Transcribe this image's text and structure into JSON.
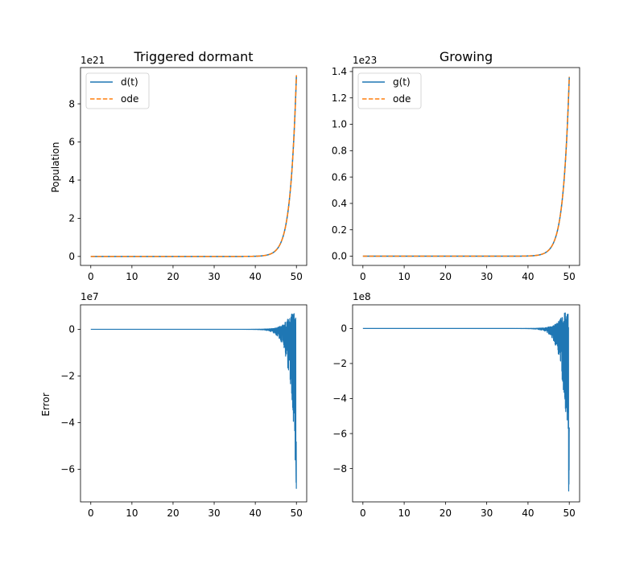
{
  "chart_data": [
    {
      "type": "line",
      "title": "Triggered dormant",
      "xlabel": "",
      "ylabel": "Population",
      "xlim": [
        -2.5,
        52.5
      ],
      "ylim": [
        -4.7e+20,
        9.9e+21
      ],
      "xticks": [
        0,
        10,
        20,
        30,
        40,
        50
      ],
      "xtick_labels": [
        "0",
        "10",
        "20",
        "30",
        "40",
        "50"
      ],
      "yticks": [
        0,
        2e+21,
        4e+21,
        6e+21,
        8e+21
      ],
      "ytick_labels": [
        "0",
        "2",
        "4",
        "6",
        "8"
      ],
      "offset_label": "1e21",
      "legend": "top-left",
      "grid": false,
      "growth": {
        "amplitude": 9.5e+21,
        "rate": 0.68
      },
      "series": [
        {
          "name": "d(t)",
          "color": "#1f77b4",
          "style": "solid"
        },
        {
          "name": "ode",
          "color": "#ff7f0e",
          "style": "dashed"
        }
      ]
    },
    {
      "type": "line",
      "title": "Growing",
      "xlabel": "",
      "ylabel": "",
      "xlim": [
        -2.5,
        52.5
      ],
      "ylim": [
        -7e+21,
        1.43e+23
      ],
      "xticks": [
        0,
        10,
        20,
        30,
        40,
        50
      ],
      "xtick_labels": [
        "0",
        "10",
        "20",
        "30",
        "40",
        "50"
      ],
      "yticks": [
        0,
        2e+22,
        4e+22,
        6e+22,
        8e+22,
        1e+23,
        1.2e+23,
        1.4e+23
      ],
      "ytick_labels": [
        "0.0",
        "0.2",
        "0.4",
        "0.6",
        "0.8",
        "1.0",
        "1.2",
        "1.4"
      ],
      "offset_label": "1e23",
      "legend": "top-left",
      "grid": false,
      "growth": {
        "amplitude": 1.36e+23,
        "rate": 0.68
      },
      "series": [
        {
          "name": "g(t)",
          "color": "#1f77b4",
          "style": "solid"
        },
        {
          "name": "ode",
          "color": "#ff7f0e",
          "style": "dashed"
        }
      ]
    },
    {
      "type": "line",
      "title": "",
      "xlabel": "",
      "ylabel": "Error",
      "xlim": [
        -2.5,
        52.5
      ],
      "ylim": [
        -74000000.0,
        10500000.0
      ],
      "xticks": [
        0,
        10,
        20,
        30,
        40,
        50
      ],
      "xtick_labels": [
        "0",
        "10",
        "20",
        "30",
        "40",
        "50"
      ],
      "yticks": [
        0,
        -20000000.0,
        -40000000.0,
        -60000000.0
      ],
      "ytick_labels": [
        "0",
        "−2",
        "−4",
        "−6"
      ],
      "offset_label": "1e7",
      "legend": "none",
      "grid": false,
      "error": {
        "min": -70000000.0,
        "max": 7000000.0,
        "onset": 40
      },
      "series": [
        {
          "name": "",
          "color": "#1f77b4",
          "style": "solid"
        }
      ]
    },
    {
      "type": "line",
      "title": "",
      "xlabel": "",
      "ylabel": "",
      "xlim": [
        -2.5,
        52.5
      ],
      "ylim": [
        -990000000.0,
        135000000.0
      ],
      "xticks": [
        0,
        10,
        20,
        30,
        40,
        50
      ],
      "xtick_labels": [
        "0",
        "10",
        "20",
        "30",
        "40",
        "50"
      ],
      "yticks": [
        0,
        -200000000.0,
        -400000000.0,
        -600000000.0,
        -800000000.0
      ],
      "ytick_labels": [
        "0",
        "−2",
        "−4",
        "−6",
        "−8"
      ],
      "offset_label": "1e8",
      "legend": "none",
      "grid": false,
      "error": {
        "min": -940000000.0,
        "max": 90000000.0,
        "onset": 40
      },
      "series": [
        {
          "name": "",
          "color": "#1f77b4",
          "style": "solid"
        }
      ]
    }
  ]
}
